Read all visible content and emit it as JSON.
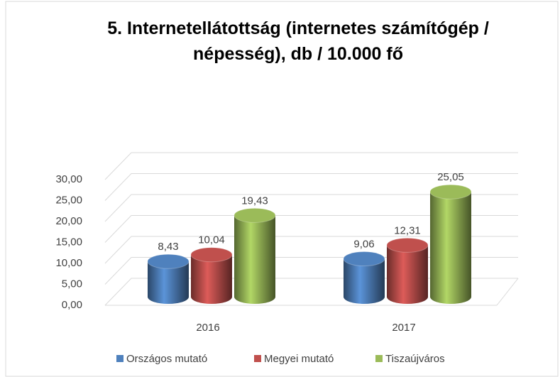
{
  "chart_data": {
    "type": "bar3d",
    "title": "5. Internetellátottság (internetes számítógép / népesség), db / 10.000 fő",
    "categories": [
      "2016",
      "2017"
    ],
    "series": [
      {
        "name": "Országos mutató",
        "color": "#4f81bd",
        "values": [
          8.43,
          9.06
        ],
        "value_labels": [
          "8,43",
          "9,06"
        ]
      },
      {
        "name": "Megyei mutató",
        "color": "#c0504d",
        "values": [
          10.04,
          12.31
        ],
        "value_labels": [
          "10,04",
          "12,31"
        ]
      },
      {
        "name": "Tiszaújváros",
        "color": "#9bbb59",
        "values": [
          19.43,
          25.05
        ],
        "value_labels": [
          "19,43",
          "25,05"
        ]
      }
    ],
    "ylim": [
      0,
      30
    ],
    "yticks": [
      {
        "value": 0,
        "label": "0,00"
      },
      {
        "value": 5,
        "label": "5,00"
      },
      {
        "value": 10,
        "label": "10,00"
      },
      {
        "value": 15,
        "label": "15,00"
      },
      {
        "value": 20,
        "label": "20,00"
      },
      {
        "value": 25,
        "label": "25,00"
      },
      {
        "value": 30,
        "label": "30,00"
      }
    ],
    "grid": true,
    "legend": "bottom"
  }
}
